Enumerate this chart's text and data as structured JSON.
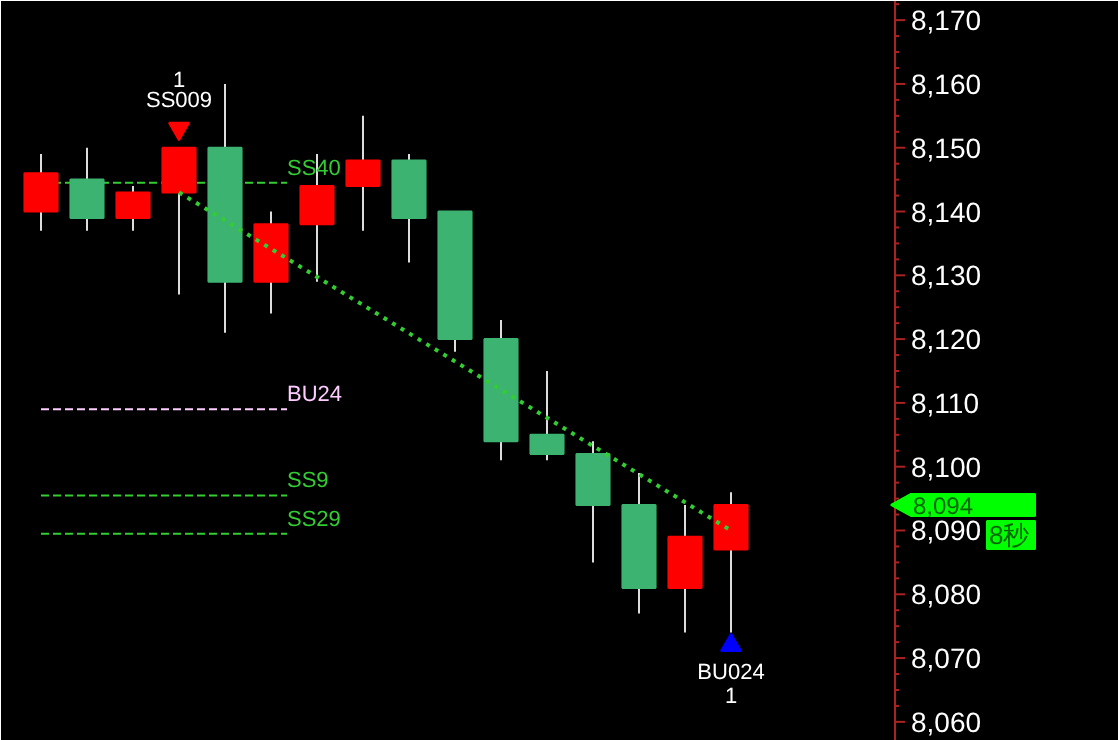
{
  "chart_data": {
    "type": "candlestick",
    "categories": [
      null,
      null,
      null,
      null,
      null,
      null,
      null,
      null,
      null,
      null,
      null,
      null,
      null,
      null,
      null,
      null
    ],
    "ohlc": [
      [
        8140,
        8149,
        8137,
        8146
      ],
      [
        8145,
        8150,
        8137,
        8139
      ],
      [
        8139,
        8144,
        8137,
        8143
      ],
      [
        8143,
        8150,
        8127,
        8150
      ],
      [
        8150,
        8160,
        8121,
        8129
      ],
      [
        8129,
        8140,
        8124,
        8138
      ],
      [
        8138,
        8149,
        8129,
        8144
      ],
      [
        8144,
        8155,
        8137,
        8148
      ],
      [
        8148,
        8149,
        8132,
        8139
      ],
      [
        8140,
        8140,
        8118,
        8120
      ],
      [
        8120,
        8123,
        8101,
        8104
      ],
      [
        8105,
        8115,
        8101,
        8102
      ],
      [
        8102,
        8104,
        8085,
        8094
      ],
      [
        8094,
        8099,
        8077,
        8081
      ],
      [
        8081,
        8094,
        8074,
        8089
      ],
      [
        8087,
        8096,
        8074,
        8094
      ]
    ],
    "colors": [
      "#ff0000",
      "#3cb371",
      "#ff0000",
      "#ff0000",
      "#3cb371",
      "#ff0000",
      "#ff0000",
      "#ff0000",
      "#3cb371",
      "#3cb371",
      "#3cb371",
      "#3cb371",
      "#3cb371",
      "#3cb371",
      "#ff0000",
      "#ff0000"
    ],
    "series": [
      {
        "type": "line",
        "color": "#33cc33",
        "line_style": "dotted",
        "values": [
          null,
          null,
          null,
          8143,
          null,
          null,
          null,
          null,
          null,
          null,
          null,
          null,
          null,
          null,
          null,
          8090
        ]
      },
      {
        "type": "scatter",
        "name": "1\nSS009",
        "color": "#ff0000",
        "marker": "triangle",
        "values": [
          null,
          null,
          null,
          8153,
          null,
          null,
          null,
          null,
          null,
          null,
          null,
          null,
          null,
          null,
          null,
          null
        ]
      },
      {
        "type": "scatter",
        "name": "BU024\n1",
        "color": "#0000ff",
        "marker": "triangle",
        "values": [
          null,
          null,
          null,
          null,
          null,
          null,
          null,
          null,
          null,
          null,
          null,
          null,
          null,
          null,
          null,
          8072
        ]
      }
    ],
    "ylim": [
      8057,
      8173
    ],
    "yticks": [
      {
        "value": 8060,
        "label": "8,060"
      },
      {
        "value": 8070,
        "label": "8,070"
      },
      {
        "value": 8080,
        "label": "8,080"
      },
      {
        "value": 8090,
        "label": "8,090"
      },
      {
        "value": 8100,
        "label": "8,100"
      },
      {
        "value": 8110,
        "label": "8,110"
      },
      {
        "value": 8120,
        "label": "8,120"
      },
      {
        "value": 8130,
        "label": "8,130"
      },
      {
        "value": 8140,
        "label": "8,140"
      },
      {
        "value": 8150,
        "label": "8,150"
      },
      {
        "value": 8160,
        "label": "8,160"
      },
      {
        "value": 8170,
        "label": "8,170"
      }
    ],
    "ref_lines": [
      {
        "axis": "y",
        "value": 8144.5,
        "label": "SS40",
        "color": "#33cc33",
        "line_style": "dashed"
      },
      {
        "axis": "y",
        "value": 8109,
        "label": "BU24",
        "color": "#ffccff",
        "line_style": "dashed"
      },
      {
        "axis": "y",
        "value": 8095.5,
        "label": "SS9",
        "color": "#33cc33",
        "line_style": "dashed"
      },
      {
        "axis": "y",
        "value": 8089.5,
        "label": "SS29",
        "color": "#33cc33",
        "line_style": "dashed"
      }
    ],
    "annotations": [
      "8,094",
      "8秒"
    ],
    "tick_labels": "y"
  }
}
